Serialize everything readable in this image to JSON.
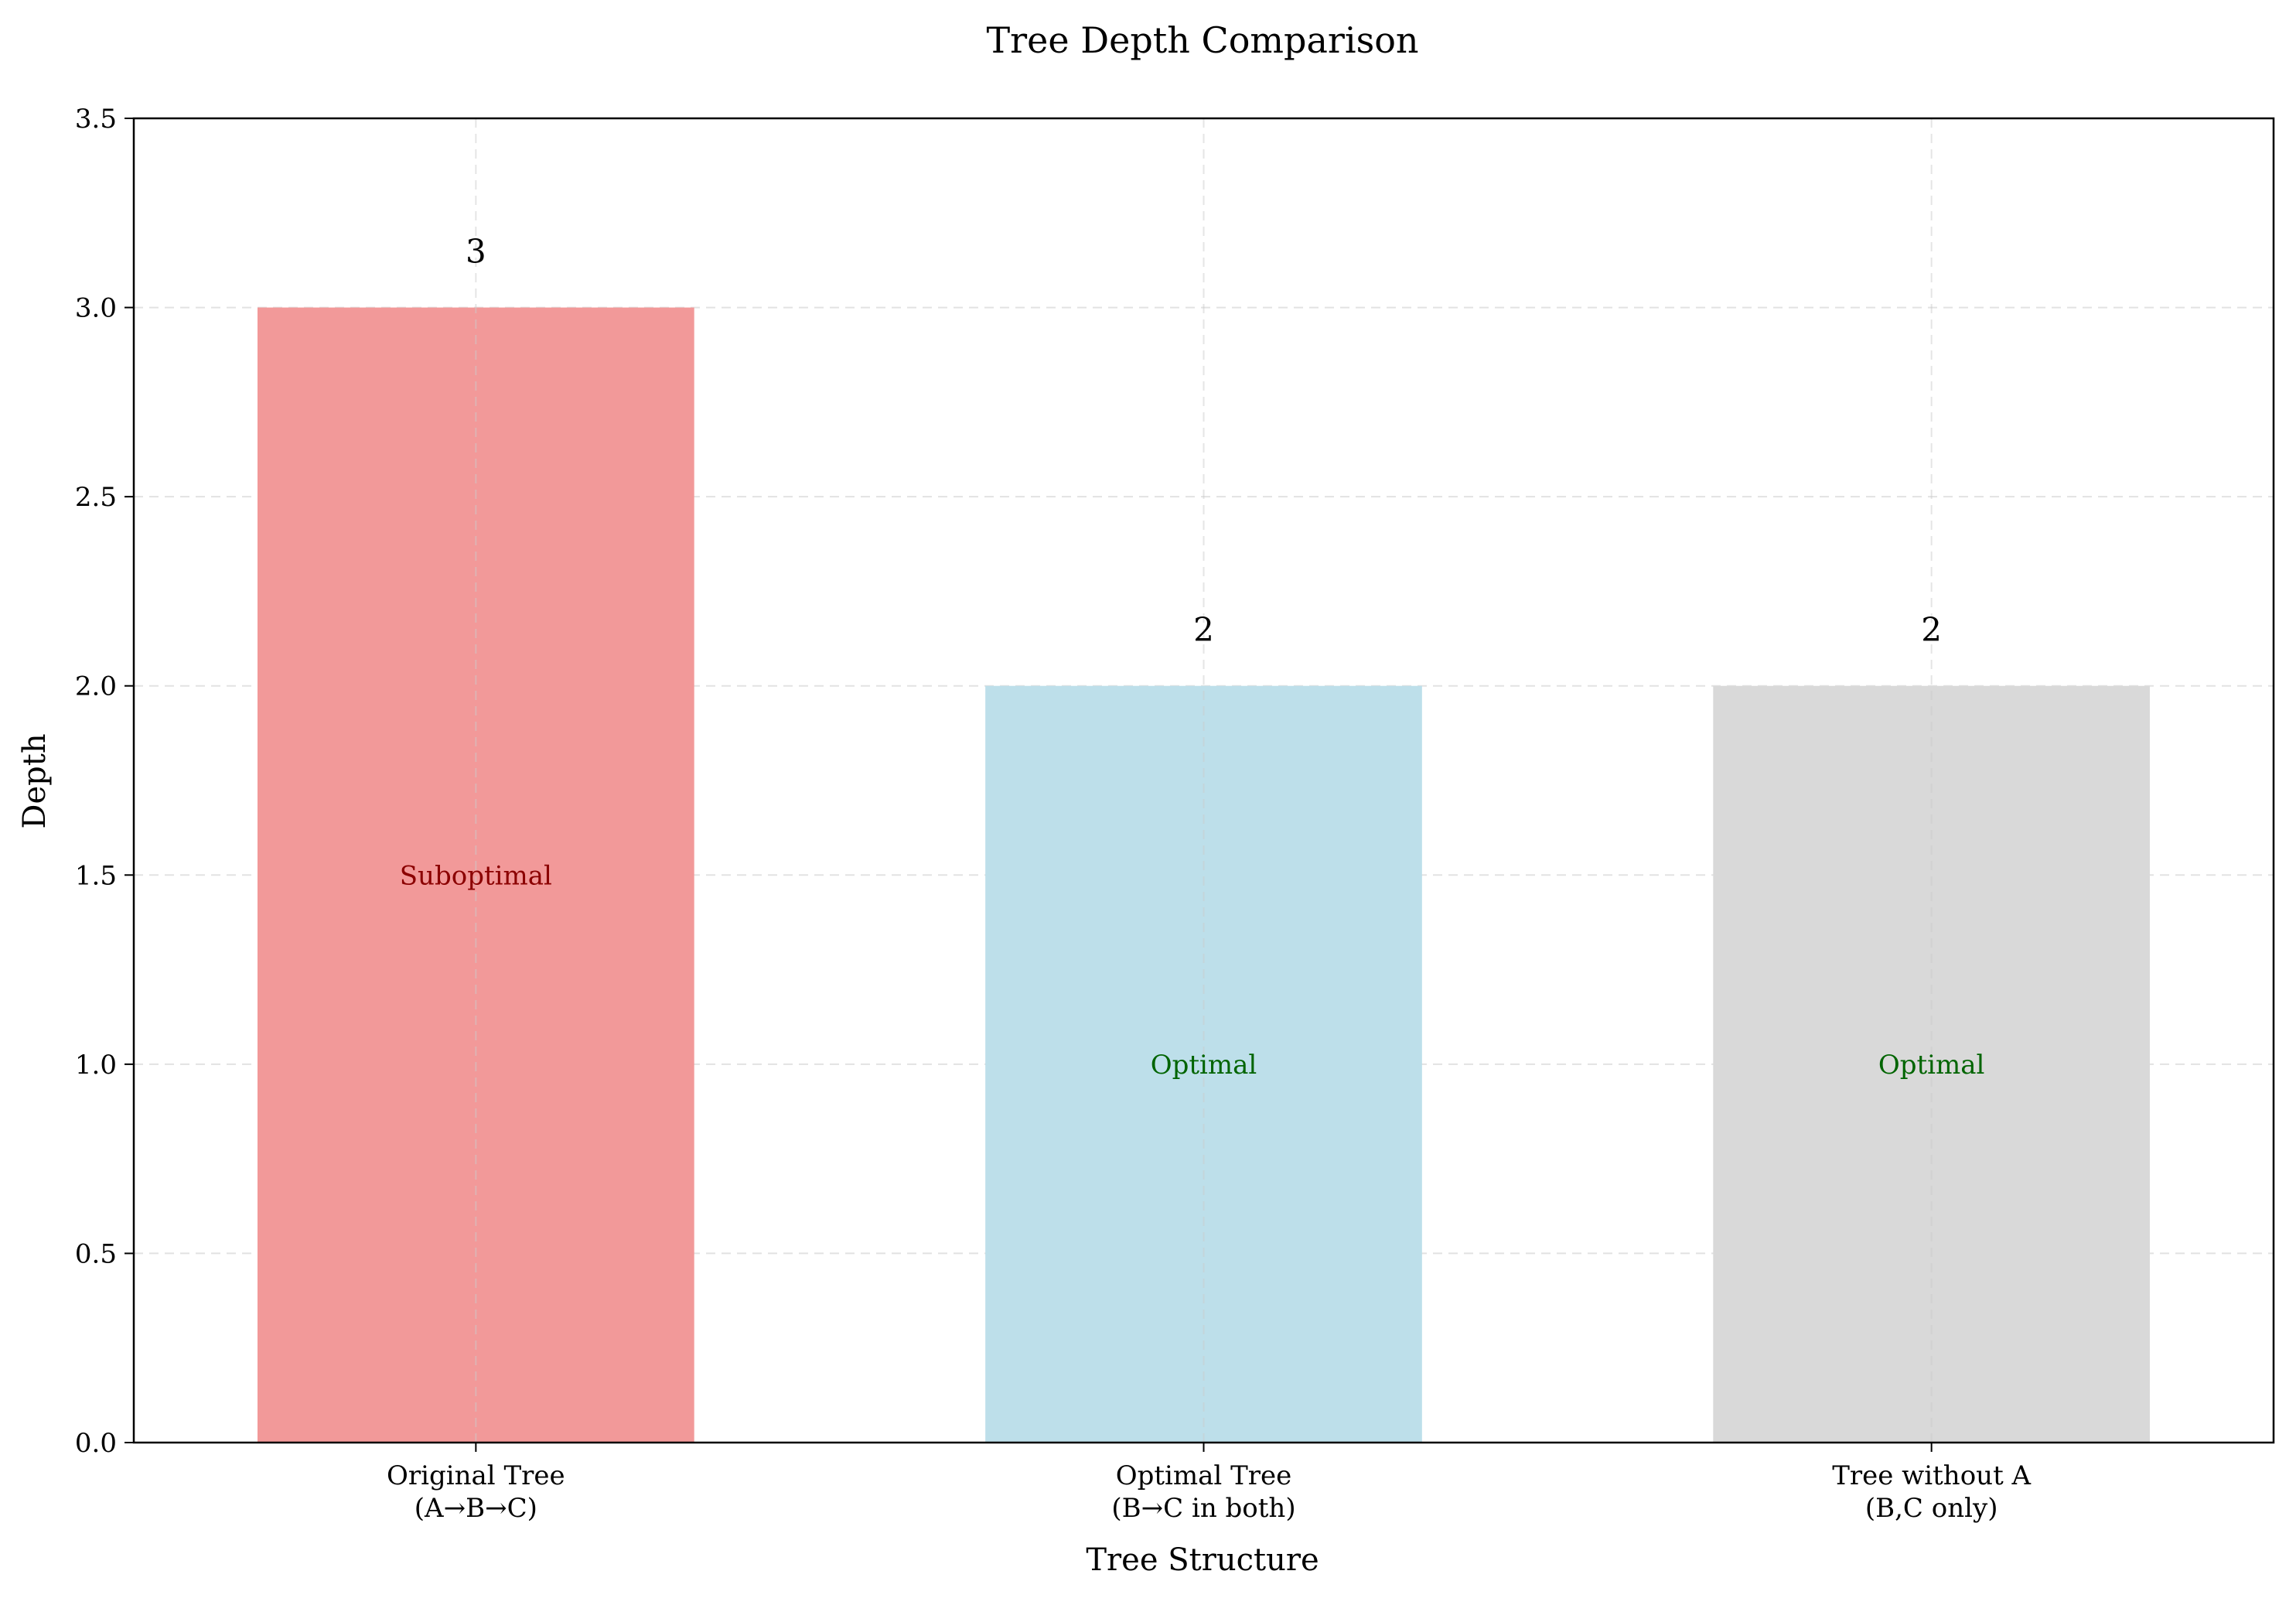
{
  "chart_data": {
    "type": "bar",
    "title": "Tree Depth Comparison",
    "xlabel": "Tree Structure",
    "ylabel": "Depth",
    "ylim": [
      0,
      3.5
    ],
    "yticks": [
      "0.0",
      "0.5",
      "1.0",
      "1.5",
      "2.0",
      "2.5",
      "3.0",
      "3.5"
    ],
    "grid": true,
    "categories": [
      [
        "Original Tree",
        "(A→B→C)"
      ],
      [
        "Optimal Tree",
        "(B→C in both)"
      ],
      [
        "Tree without A",
        "(B,C only)"
      ]
    ],
    "values": [
      3,
      2,
      2
    ],
    "value_labels": [
      "3",
      "2",
      "2"
    ],
    "bar_colors": [
      "#f29999",
      "#bddfea",
      "#d9d9d9"
    ],
    "annotations": [
      {
        "text": "Suboptimal",
        "y": 1.5,
        "color": "#8b0000"
      },
      {
        "text": "Optimal",
        "y": 1.0,
        "color": "#006400"
      },
      {
        "text": "Optimal",
        "y": 1.0,
        "color": "#006400"
      }
    ]
  }
}
